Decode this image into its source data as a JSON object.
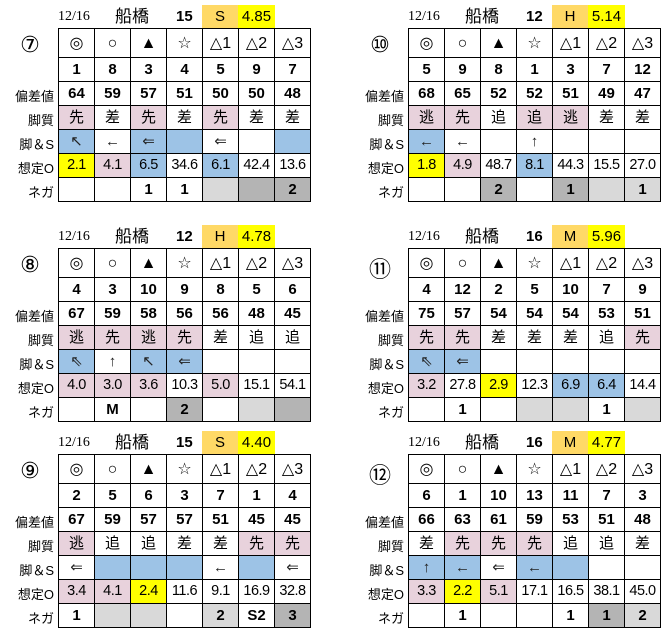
{
  "colors": {
    "p": "#E8D2DC",
    "b": "#9DC3E6",
    "y": "#FFFF00",
    "g": "#D9D9D9",
    "d": "#B4B4B4",
    "grade": "#FFD966"
  },
  "row_labels": [
    "偏差値",
    "脚質",
    "脚＆S",
    "想定O",
    "ネガ"
  ],
  "marks": [
    "◎",
    "○",
    "▲",
    "☆",
    "△1",
    "△2",
    "△3"
  ],
  "panels": [
    {
      "race": "⑦",
      "date": "12/16",
      "venue": "船橋",
      "count": "15",
      "grade": "S",
      "value": "4.85",
      "horses": [
        "1",
        "8",
        "3",
        "4",
        "5",
        "9",
        "7"
      ],
      "dev": [
        "64",
        "59",
        "57",
        "51",
        "50",
        "50",
        "48"
      ],
      "style": [
        [
          "先",
          "p"
        ],
        [
          "差",
          ""
        ],
        [
          "先",
          "p"
        ],
        [
          "差",
          ""
        ],
        [
          "先",
          "p"
        ],
        [
          "差",
          ""
        ],
        [
          "差",
          ""
        ]
      ],
      "arrow": [
        [
          "↖",
          "b"
        ],
        [
          "←",
          ""
        ],
        [
          "⇐",
          "b"
        ],
        [
          "",
          "b"
        ],
        [
          "⇐",
          ""
        ],
        [
          "",
          ""
        ],
        [
          "",
          "b"
        ]
      ],
      "odds": [
        [
          "2.1",
          "y"
        ],
        [
          "4.1",
          "p"
        ],
        [
          "6.5",
          "b"
        ],
        [
          "34.6",
          ""
        ],
        [
          "6.1",
          "b"
        ],
        [
          "42.4",
          ""
        ],
        [
          "13.6",
          ""
        ]
      ],
      "nega": [
        [
          "",
          ""
        ],
        [
          "",
          ""
        ],
        [
          "1",
          ""
        ],
        [
          "1",
          ""
        ],
        [
          "",
          "g"
        ],
        [
          "",
          "d"
        ],
        [
          "2",
          "d"
        ]
      ]
    },
    {
      "race": "⑩",
      "date": "12/16",
      "venue": "船橋",
      "count": "12",
      "grade": "H",
      "value": "5.14",
      "horses": [
        "5",
        "9",
        "8",
        "1",
        "3",
        "7",
        "12"
      ],
      "dev": [
        "68",
        "65",
        "52",
        "52",
        "51",
        "49",
        "47"
      ],
      "style": [
        [
          "逃",
          "p"
        ],
        [
          "先",
          "p"
        ],
        [
          "追",
          ""
        ],
        [
          "追",
          "p"
        ],
        [
          "逃",
          "p"
        ],
        [
          "差",
          ""
        ],
        [
          "差",
          ""
        ]
      ],
      "arrow": [
        [
          "←",
          "b"
        ],
        [
          "←",
          ""
        ],
        [
          "",
          ""
        ],
        [
          "↑",
          ""
        ],
        [
          "",
          ""
        ],
        [
          "",
          ""
        ],
        [
          "",
          ""
        ]
      ],
      "odds": [
        [
          "1.8",
          "y"
        ],
        [
          "4.9",
          "p"
        ],
        [
          "48.7",
          ""
        ],
        [
          "8.1",
          "b"
        ],
        [
          "44.3",
          ""
        ],
        [
          "15.5",
          ""
        ],
        [
          "27.0",
          ""
        ]
      ],
      "nega": [
        [
          "",
          ""
        ],
        [
          "",
          ""
        ],
        [
          "2",
          "d"
        ],
        [
          "",
          ""
        ],
        [
          "1",
          "d"
        ],
        [
          "",
          "g"
        ],
        [
          "1",
          "g"
        ]
      ]
    },
    {
      "race": "⑧",
      "date": "12/16",
      "venue": "船橋",
      "count": "12",
      "grade": "H",
      "value": "4.78",
      "horses": [
        "4",
        "3",
        "10",
        "9",
        "8",
        "5",
        "6"
      ],
      "dev": [
        "67",
        "59",
        "58",
        "56",
        "56",
        "48",
        "45"
      ],
      "style": [
        [
          "逃",
          "p"
        ],
        [
          "先",
          "p"
        ],
        [
          "逃",
          "p"
        ],
        [
          "先",
          "p"
        ],
        [
          "差",
          ""
        ],
        [
          "追",
          ""
        ],
        [
          "追",
          ""
        ]
      ],
      "arrow": [
        [
          "⇖",
          "b"
        ],
        [
          "↑",
          ""
        ],
        [
          "↖",
          "b"
        ],
        [
          "⇐",
          "b"
        ],
        [
          "",
          ""
        ],
        [
          "",
          ""
        ],
        [
          "",
          ""
        ]
      ],
      "odds": [
        [
          "4.0",
          "p"
        ],
        [
          "3.0",
          "p"
        ],
        [
          "3.6",
          "p"
        ],
        [
          "10.3",
          ""
        ],
        [
          "5.0",
          "p"
        ],
        [
          "15.1",
          ""
        ],
        [
          "54.1",
          ""
        ]
      ],
      "nega": [
        [
          "",
          ""
        ],
        [
          "M",
          ""
        ],
        [
          "",
          ""
        ],
        [
          "2",
          "d"
        ],
        [
          "",
          ""
        ],
        [
          "",
          "g"
        ],
        [
          "",
          "d"
        ]
      ]
    },
    {
      "race": "⑪",
      "date": "12/16",
      "venue": "船橋",
      "count": "16",
      "grade": "M",
      "value": "5.96",
      "horses": [
        "4",
        "12",
        "2",
        "5",
        "10",
        "7",
        "9"
      ],
      "dev": [
        "75",
        "57",
        "54",
        "54",
        "54",
        "53",
        "51"
      ],
      "style": [
        [
          "先",
          "p"
        ],
        [
          "先",
          "p"
        ],
        [
          "差",
          ""
        ],
        [
          "差",
          ""
        ],
        [
          "差",
          ""
        ],
        [
          "追",
          ""
        ],
        [
          "先",
          "p"
        ]
      ],
      "arrow": [
        [
          "⇖",
          "b"
        ],
        [
          "⇐",
          "b"
        ],
        [
          "",
          ""
        ],
        [
          "",
          ""
        ],
        [
          "",
          ""
        ],
        [
          "",
          ""
        ],
        [
          "",
          ""
        ]
      ],
      "odds": [
        [
          "3.2",
          "p"
        ],
        [
          "27.8",
          ""
        ],
        [
          "2.9",
          "y"
        ],
        [
          "12.3",
          ""
        ],
        [
          "6.9",
          "b"
        ],
        [
          "6.4",
          "b"
        ],
        [
          "14.4",
          ""
        ]
      ],
      "nega": [
        [
          "",
          ""
        ],
        [
          "1",
          ""
        ],
        [
          "",
          ""
        ],
        [
          "",
          "g"
        ],
        [
          "",
          "g"
        ],
        [
          "1",
          ""
        ],
        [
          "",
          "g"
        ]
      ]
    },
    {
      "race": "⑨",
      "date": "12/16",
      "venue": "船橋",
      "count": "15",
      "grade": "S",
      "value": "4.40",
      "horses": [
        "2",
        "5",
        "6",
        "3",
        "7",
        "1",
        "4"
      ],
      "dev": [
        "67",
        "59",
        "57",
        "57",
        "51",
        "45",
        "45"
      ],
      "style": [
        [
          "逃",
          "p"
        ],
        [
          "追",
          ""
        ],
        [
          "追",
          ""
        ],
        [
          "差",
          ""
        ],
        [
          "差",
          ""
        ],
        [
          "先",
          "p"
        ],
        [
          "先",
          "p"
        ]
      ],
      "arrow": [
        [
          "⇐",
          ""
        ],
        [
          "",
          "b"
        ],
        [
          "",
          "b"
        ],
        [
          "",
          "b"
        ],
        [
          "←",
          ""
        ],
        [
          "",
          "b"
        ],
        [
          "⇐",
          ""
        ]
      ],
      "odds": [
        [
          "3.4",
          "p"
        ],
        [
          "4.1",
          "p"
        ],
        [
          "2.4",
          "y"
        ],
        [
          "11.6",
          ""
        ],
        [
          "9.1",
          ""
        ],
        [
          "16.9",
          ""
        ],
        [
          "32.8",
          ""
        ]
      ],
      "nega": [
        [
          "1",
          ""
        ],
        [
          "",
          "g"
        ],
        [
          "",
          "g"
        ],
        [
          "",
          ""
        ],
        [
          "2",
          "g"
        ],
        [
          "S2",
          ""
        ],
        [
          "3",
          "d"
        ]
      ]
    },
    {
      "race": "⑫",
      "date": "12/16",
      "venue": "船橋",
      "count": "16",
      "grade": "M",
      "value": "4.77",
      "horses": [
        "6",
        "1",
        "10",
        "13",
        "11",
        "7",
        "3"
      ],
      "dev": [
        "66",
        "63",
        "61",
        "59",
        "53",
        "51",
        "48"
      ],
      "style": [
        [
          "差",
          ""
        ],
        [
          "先",
          "p"
        ],
        [
          "先",
          "p"
        ],
        [
          "先",
          "p"
        ],
        [
          "追",
          ""
        ],
        [
          "追",
          ""
        ],
        [
          "差",
          ""
        ]
      ],
      "arrow": [
        [
          "↑",
          "b"
        ],
        [
          "←",
          "b"
        ],
        [
          "⇐",
          ""
        ],
        [
          "←",
          "b"
        ],
        [
          "",
          "b"
        ],
        [
          "",
          ""
        ],
        [
          "",
          ""
        ]
      ],
      "odds": [
        [
          "3.3",
          "p"
        ],
        [
          "2.2",
          "y"
        ],
        [
          "5.1",
          "p"
        ],
        [
          "17.1",
          ""
        ],
        [
          "16.5",
          ""
        ],
        [
          "38.1",
          ""
        ],
        [
          "45.0",
          ""
        ]
      ],
      "nega": [
        [
          "",
          ""
        ],
        [
          "1",
          ""
        ],
        [
          "",
          ""
        ],
        [
          "",
          ""
        ],
        [
          "1",
          ""
        ],
        [
          "1",
          "d"
        ],
        [
          "2",
          "g"
        ]
      ]
    }
  ]
}
